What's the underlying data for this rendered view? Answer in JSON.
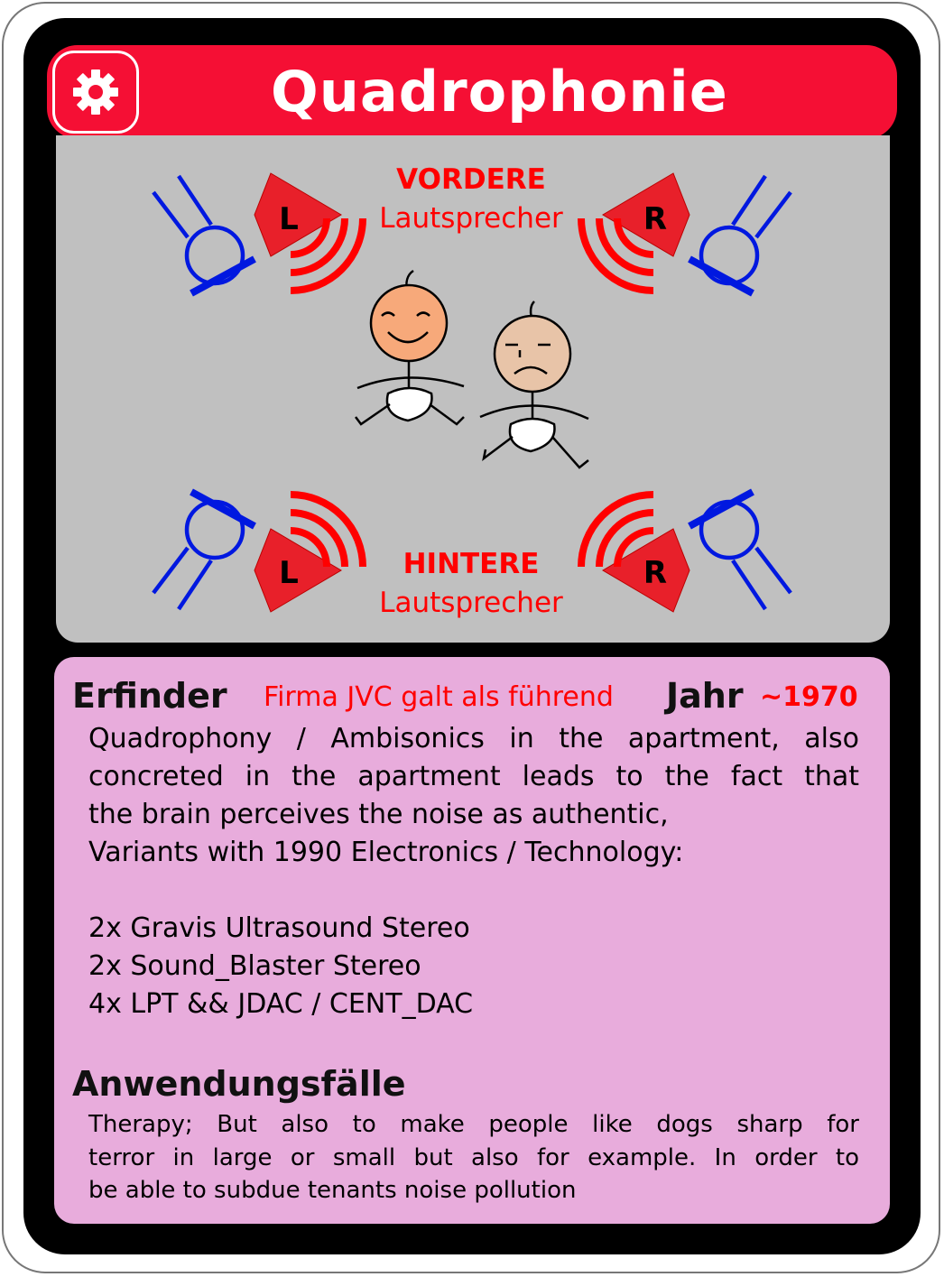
{
  "card": {
    "title": "Quadrophonie",
    "icon": "gear-icon"
  },
  "illustration": {
    "front_label": "VORDERE",
    "front_sublabel": "Lautsprecher",
    "rear_label": "HINTERE",
    "rear_sublabel": "Lautsprecher",
    "speaker_left": "L",
    "speaker_right": "R",
    "speaker_color": "#ff0000",
    "stand_color": "#0018e0",
    "happy_face_color": "#f7a97a",
    "sad_face_color": "#e8c4a8"
  },
  "info": {
    "inventor_heading": "Erfinder",
    "inventor_value": "Firma JVC galt als führend",
    "year_heading": "Jahr",
    "year_value": "~1970",
    "description": [
      "Quadrophony / Ambisonics in the apartment, also",
      "concreted in the apartment leads to the fact that",
      "the brain perceives the noise as authentic,",
      "Variants with 1990 Electronics / Technology:",
      "",
      "2x Gravis Ultrasound Stereo",
      "2x Sound_Blaster Stereo",
      "4x LPT && JDAC / CENT_DAC"
    ],
    "use_cases_heading": "Anwendungsfälle",
    "use_cases": [
      "Therapy; But also to make people like dogs sharp for",
      "terror in large or small but also for example. In order to",
      "be able to subdue tenants noise pollution"
    ]
  },
  "colors": {
    "title_bar": "#f50f34",
    "image_panel": "#c0c0c0",
    "info_panel": "#e8acdc",
    "accent_text": "#ff0000",
    "frame": "#000000"
  }
}
